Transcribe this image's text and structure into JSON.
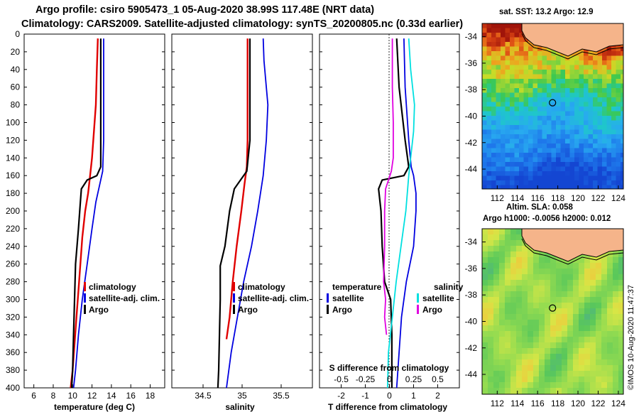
{
  "header": {
    "line1": "Argo profile: csiro 5905473_1 05-Aug-2020 38.99S 117.48E (NRT data)",
    "line2": "Climatology: CARS2009. Satellite-adjusted climatology: synTS_20200805.nc (0.33d earlier)"
  },
  "colors": {
    "climatology": "#e00000",
    "satellite": "#0000e0",
    "argo": "#000000",
    "salinity_satellite": "#00e0e0",
    "salinity_argo": "#e000e0",
    "land": "#f5b48a"
  },
  "chart_data": [
    {
      "type": "line",
      "title": "",
      "xlabel": "temperature (deg C)",
      "ylabel": "",
      "xlim": [
        5,
        19.5
      ],
      "ylim": [
        400,
        0
      ],
      "xticks": [
        "6",
        "8",
        "10",
        "12",
        "14",
        "16",
        "18"
      ],
      "yticks": [
        "0",
        "20",
        "40",
        "60",
        "80",
        "100",
        "120",
        "140",
        "160",
        "180",
        "200",
        "220",
        "240",
        "260",
        "280",
        "300",
        "320",
        "340",
        "360",
        "380",
        "400"
      ],
      "legend": [
        "climatology",
        "satellite-adj. clim.",
        "Argo"
      ],
      "series": [
        {
          "name": "climatology",
          "color": "#e00000",
          "depth": [
            5,
            40,
            80,
            110,
            140,
            160,
            180,
            200,
            230,
            260,
            290,
            320,
            350,
            380,
            400
          ],
          "values": [
            12.6,
            12.5,
            12.4,
            12.2,
            12.0,
            11.8,
            11.6,
            11.3,
            11.0,
            10.8,
            10.6,
            10.4,
            10.2,
            10.0,
            9.8
          ]
        },
        {
          "name": "satellite-adj. clim.",
          "color": "#0000e0",
          "depth": [
            5,
            40,
            80,
            120,
            155,
            170,
            190,
            220,
            260,
            300,
            340,
            380,
            400
          ],
          "values": [
            13.2,
            13.2,
            13.2,
            13.2,
            13.1,
            12.8,
            12.4,
            12.0,
            11.5,
            11.0,
            10.6,
            10.3,
            10.1
          ]
        },
        {
          "name": "Argo",
          "color": "#000000",
          "depth": [
            5,
            40,
            80,
            120,
            150,
            160,
            165,
            175,
            190,
            220,
            260,
            300,
            340,
            380,
            400
          ],
          "values": [
            12.9,
            12.9,
            12.9,
            12.9,
            12.9,
            12.5,
            11.5,
            10.9,
            10.8,
            10.6,
            10.3,
            10.2,
            10.1,
            10.0,
            9.9
          ]
        }
      ]
    },
    {
      "type": "line",
      "title": "",
      "xlabel": "salinity",
      "ylabel": "",
      "xlim": [
        34.1,
        35.9
      ],
      "ylim": [
        400,
        0
      ],
      "xticks": [
        "34.5",
        "35",
        "35.5"
      ],
      "legend": [
        "climatology",
        "satellite-adj. clim.",
        "Argo"
      ],
      "series": [
        {
          "name": "climatology",
          "color": "#e00000",
          "depth": [
            5,
            40,
            80,
            120,
            150,
            170,
            200,
            240,
            280,
            320,
            345
          ],
          "values": [
            35.07,
            35.07,
            35.07,
            35.07,
            35.06,
            35.03,
            34.99,
            34.93,
            34.88,
            34.84,
            34.8
          ]
        },
        {
          "name": "satellite-adj. clim.",
          "color": "#0000e0",
          "depth": [
            5,
            30,
            60,
            80,
            120,
            160,
            200,
            240,
            280,
            320,
            360,
            400
          ],
          "values": [
            35.27,
            35.28,
            35.31,
            35.33,
            35.31,
            35.27,
            35.2,
            35.12,
            35.02,
            34.94,
            34.86,
            34.8
          ]
        },
        {
          "name": "Argo",
          "color": "#000000",
          "depth": [
            5,
            60,
            120,
            155,
            165,
            175,
            200,
            240,
            262,
            270,
            300,
            340,
            380,
            400
          ],
          "values": [
            35.1,
            35.1,
            35.1,
            35.06,
            34.98,
            34.9,
            34.84,
            34.78,
            34.72,
            34.72,
            34.72,
            34.71,
            34.7,
            34.69
          ]
        }
      ]
    },
    {
      "type": "line",
      "title": "",
      "xlabel": "T difference from climatology",
      "xlabel_top": "S difference from climatology",
      "ylabel": "",
      "xlim": [
        -2.9,
        2.9
      ],
      "ylim": [
        400,
        0
      ],
      "xticks": [
        "-2",
        "-1",
        "0",
        "1",
        "2"
      ],
      "xticks_top": [
        "-0.5",
        "-0.25",
        "0",
        "0.25",
        "0.5"
      ],
      "legend_temperature_heading": "temperature",
      "legend_salinity_heading": "salinity",
      "legend_temperature": [
        "satellite",
        "Argo"
      ],
      "legend_salinity": [
        "satellite",
        "Argo"
      ],
      "series": [
        {
          "name": "temperature satellite",
          "color": "#0000e0",
          "depth": [
            5,
            60,
            120,
            150,
            160,
            180,
            200,
            240,
            280,
            320,
            360,
            400
          ],
          "values": [
            0.6,
            0.65,
            0.8,
            0.9,
            1.0,
            1.1,
            1.1,
            1.0,
            0.7,
            0.5,
            0.4,
            0.3
          ]
        },
        {
          "name": "temperature Argo",
          "color": "#000000",
          "depth": [
            5,
            60,
            120,
            150,
            160,
            165,
            175,
            200,
            240,
            280,
            300,
            340,
            380,
            400
          ],
          "values": [
            0.3,
            0.4,
            0.65,
            0.8,
            0.6,
            -0.3,
            -0.45,
            -0.35,
            -0.3,
            -0.2,
            0.05,
            0.1,
            0.1,
            0.1
          ]
        },
        {
          "name": "salinity satellite",
          "color": "#00e0e0",
          "depth": [
            5,
            40,
            80,
            110,
            140,
            160,
            200,
            240,
            280,
            320,
            360,
            400
          ],
          "values": [
            0.2,
            0.22,
            0.26,
            0.25,
            0.22,
            0.2,
            0.17,
            0.12,
            0.07,
            0.03,
            -0.01,
            -0.02
          ]
        },
        {
          "name": "salinity Argo",
          "color": "#e000e0",
          "depth": [
            5,
            60,
            100,
            140,
            155,
            175,
            200,
            240,
            280,
            300,
            320,
            340
          ],
          "values": [
            0.03,
            0.03,
            0.04,
            0.04,
            0.02,
            -0.04,
            -0.05,
            -0.05,
            -0.06,
            -0.04,
            -0.05,
            -0.03
          ]
        }
      ]
    }
  ],
  "maps": {
    "sst": {
      "title": "sat. SST: 13.2 Argo: 12.9",
      "yticks": [
        "-34",
        "-36",
        "-38",
        "-40",
        "-42",
        "-44"
      ],
      "xticks": [
        "112",
        "114",
        "116",
        "118",
        "120",
        "122",
        "124"
      ]
    },
    "sla": {
      "title1": "Altim. SLA: 0.058",
      "title2": "Argo h1000: -0.0056 h2000: 0.012",
      "yticks": [
        "-34",
        "-36",
        "-38",
        "-40",
        "-42",
        "-44"
      ],
      "xticks": [
        "112",
        "114",
        "116",
        "118",
        "120",
        "122",
        "124"
      ]
    },
    "profile_location": {
      "lon": 117.48,
      "lat": -38.99
    }
  },
  "footer": {
    "stamp": "©IMOS 10-Aug-2020 11:47:37"
  }
}
